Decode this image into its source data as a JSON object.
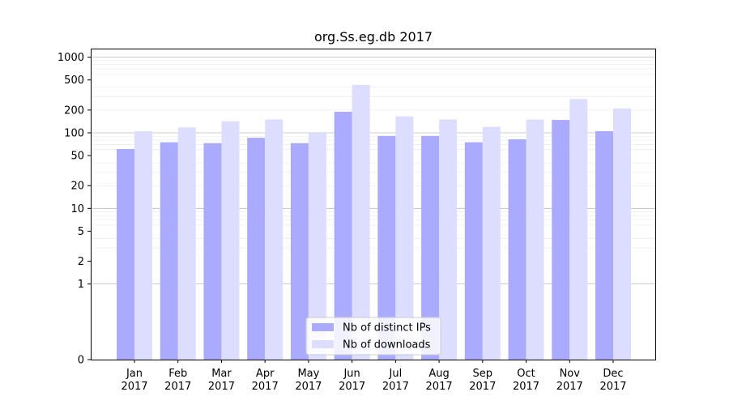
{
  "chart_data": {
    "type": "bar",
    "title": "org.Ss.eg.db 2017",
    "xlabel": "",
    "ylabel": "",
    "yscale": "symlog",
    "ylim": [
      0,
      1300
    ],
    "yticks": [
      {
        "value": 0,
        "label": "0"
      },
      {
        "value": 1,
        "label": "1"
      },
      {
        "value": 2,
        "label": "2"
      },
      {
        "value": 5,
        "label": "5"
      },
      {
        "value": 10,
        "label": "10"
      },
      {
        "value": 20,
        "label": "20"
      },
      {
        "value": 50,
        "label": "50"
      },
      {
        "value": 100,
        "label": "100"
      },
      {
        "value": 200,
        "label": "200"
      },
      {
        "value": 500,
        "label": "500"
      },
      {
        "value": 1000,
        "label": "1000"
      }
    ],
    "categories": [
      {
        "month": "Jan",
        "year": "2017"
      },
      {
        "month": "Feb",
        "year": "2017"
      },
      {
        "month": "Mar",
        "year": "2017"
      },
      {
        "month": "Apr",
        "year": "2017"
      },
      {
        "month": "May",
        "year": "2017"
      },
      {
        "month": "Jun",
        "year": "2017"
      },
      {
        "month": "Jul",
        "year": "2017"
      },
      {
        "month": "Aug",
        "year": "2017"
      },
      {
        "month": "Sep",
        "year": "2017"
      },
      {
        "month": "Oct",
        "year": "2017"
      },
      {
        "month": "Nov",
        "year": "2017"
      },
      {
        "month": "Dec",
        "year": "2017"
      }
    ],
    "series": [
      {
        "name": "Nb of distinct IPs",
        "color": "#aaaaff",
        "values": [
          61,
          75,
          73,
          86,
          73,
          190,
          91,
          91,
          75,
          82,
          148,
          105
        ]
      },
      {
        "name": "Nb of downloads",
        "color": "#ddddff",
        "values": [
          105,
          118,
          142,
          150,
          102,
          430,
          165,
          150,
          120,
          150,
          280,
          210
        ]
      }
    ],
    "grid": true,
    "legend_position": "lower center"
  }
}
